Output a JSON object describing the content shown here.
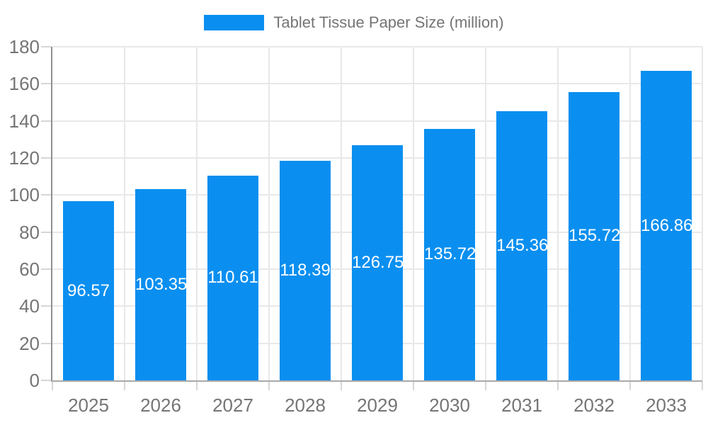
{
  "chart_data": {
    "type": "bar",
    "title": "Tablet Tissue Paper Size (million)",
    "categories": [
      "2025",
      "2026",
      "2027",
      "2028",
      "2029",
      "2030",
      "2031",
      "2032",
      "2033"
    ],
    "values": [
      96.57,
      103.35,
      110.61,
      118.39,
      126.75,
      135.72,
      145.36,
      155.72,
      166.86
    ],
    "value_labels": [
      "96.57",
      "103.35",
      "110.61",
      "118.39",
      "126.75",
      "135.72",
      "145.36",
      "155.72",
      "166.86"
    ],
    "xlabel": "",
    "ylabel": "",
    "ylim": [
      0,
      180
    ],
    "yticks": [
      0,
      20,
      40,
      60,
      80,
      100,
      120,
      140,
      160,
      180
    ],
    "grid": true,
    "legend_position": "top",
    "bar_label_position": "inside-middle"
  },
  "colors": {
    "bar": "#0a8ff0",
    "axis_text": "#757575",
    "bar_label_text": "#ffffff",
    "grid_line": "#e8e8e8",
    "tick_line": "#d6d6d6",
    "axis_line_y": "#8f8f8f",
    "axis_line_x": "#a9a9a9",
    "background": "#ffffff"
  }
}
